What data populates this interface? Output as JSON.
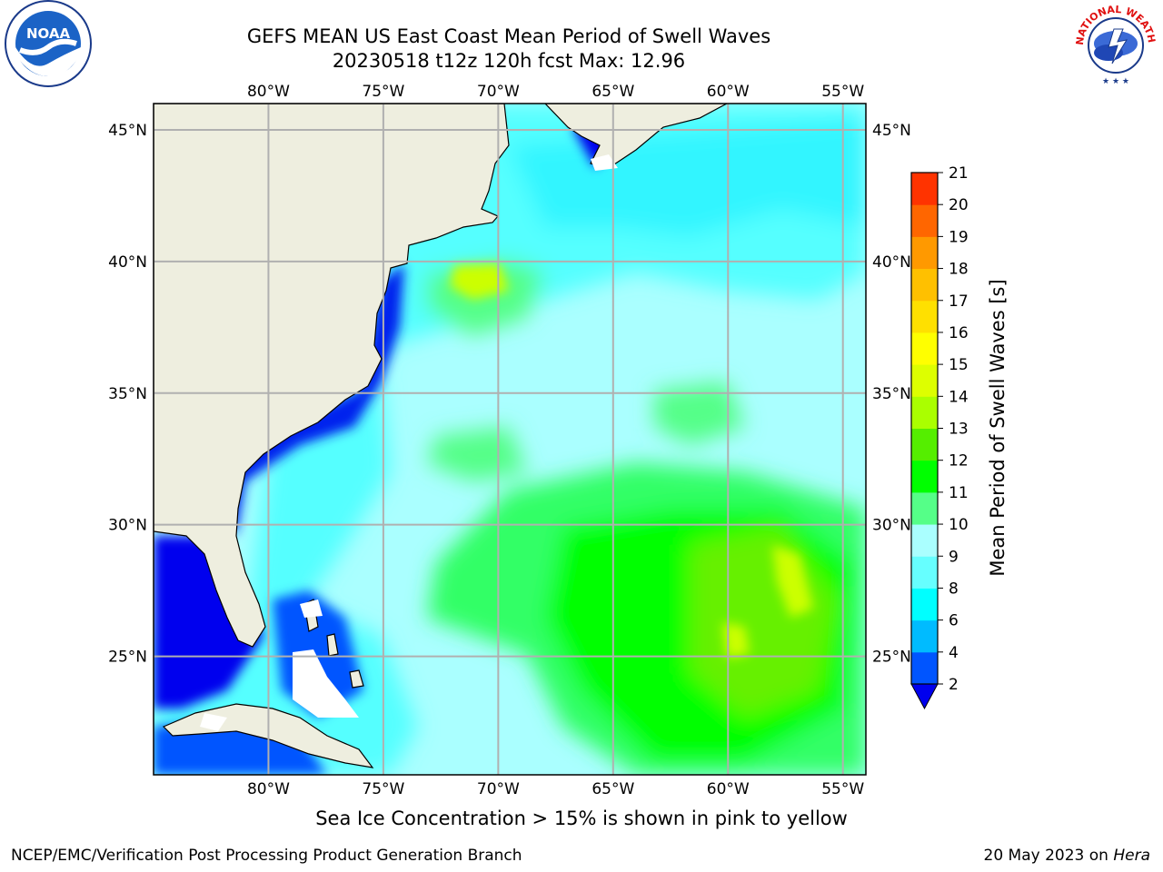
{
  "title": {
    "line1": "GEFS MEAN US East Coast Mean Period of Swell Waves",
    "line2": "20230518 t12z 120h fcst   Max: 12.96"
  },
  "map": {
    "lon_labels": [
      "80°W",
      "75°W",
      "70°W",
      "65°W",
      "60°W",
      "55°W"
    ],
    "lat_labels": [
      "45°N",
      "40°N",
      "35°N",
      "30°N",
      "25°N"
    ],
    "lon_range": [
      -85,
      -54
    ],
    "lat_range": [
      20.5,
      46
    ],
    "colors": {
      "land": "#eeeedf",
      "coast": "#000000",
      "grid": "#b0b0b0"
    }
  },
  "colorbar": {
    "label": "Mean Period of Swell Waves [s]",
    "ticks": [
      "2",
      "4",
      "6",
      "8",
      "9",
      "10",
      "11",
      "12",
      "13",
      "14",
      "15",
      "16",
      "17",
      "18",
      "19",
      "20",
      "21"
    ],
    "colors": [
      "#0055ff",
      "#00bbff",
      "#00ffff",
      "#66ffff",
      "#aaffff",
      "#55ff88",
      "#00ff00",
      "#55ee00",
      "#aaff00",
      "#ddff00",
      "#ffff00",
      "#ffe000",
      "#ffc000",
      "#ff9900",
      "#ff6600",
      "#ff3300"
    ],
    "under_color": "#0000ee"
  },
  "caption": "Sea Ice Concentration > 15% is shown in pink to yellow",
  "footer": {
    "left": "NCEP/EMC/Verification Post Processing Product Generation Branch",
    "right_date": "20 May 2023 on ",
    "right_machine": "Hera"
  },
  "logos": {
    "noaa_text": "NOAA",
    "nws_text": "NATIONAL WEATHER SERVICE"
  }
}
